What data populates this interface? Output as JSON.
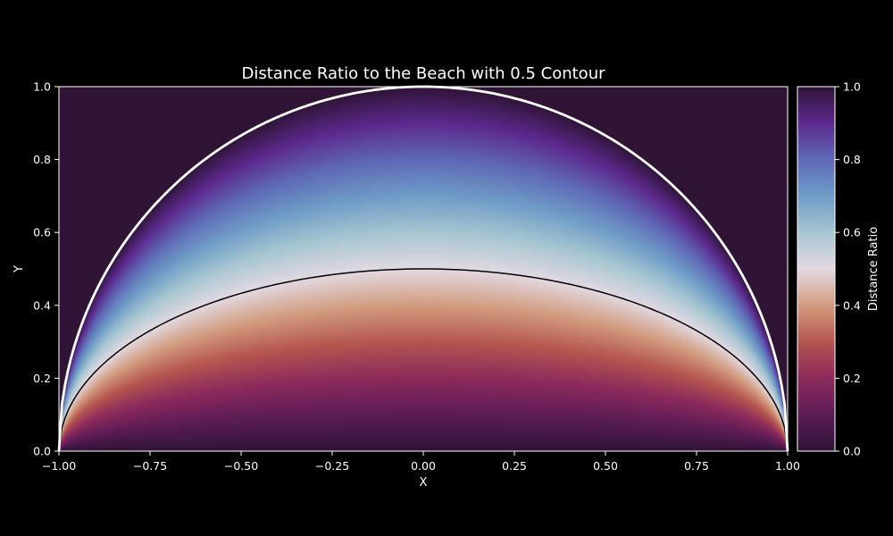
{
  "chart_data": {
    "type": "heatmap",
    "title": "Distance Ratio to the Beach with 0.5 Contour",
    "xlabel": "X",
    "ylabel": "Y",
    "xlim": [
      -1.0,
      1.0
    ],
    "ylim": [
      0.0,
      1.0
    ],
    "x_ticks": [
      "−1.00",
      "−0.75",
      "−0.50",
      "−0.25",
      "0.00",
      "0.25",
      "0.50",
      "0.75",
      "1.00"
    ],
    "x_tick_values": [
      -1.0,
      -0.75,
      -0.5,
      -0.25,
      0.0,
      0.25,
      0.5,
      0.75,
      1.0
    ],
    "y_ticks": [
      "0.0",
      "0.2",
      "0.4",
      "0.6",
      "0.8",
      "1.0"
    ],
    "y_tick_values": [
      0.0,
      0.2,
      0.4,
      0.6,
      0.8,
      1.0
    ],
    "colormap": "twilight_shifted",
    "colormap_stops": [
      [
        0.0,
        "#2f1436"
      ],
      [
        0.1,
        "#5c1c55"
      ],
      [
        0.2,
        "#8d2a5c"
      ],
      [
        0.3,
        "#b5564f"
      ],
      [
        0.4,
        "#d29c7f"
      ],
      [
        0.5,
        "#e2d9e2"
      ],
      [
        0.6,
        "#a6c6d1"
      ],
      [
        0.7,
        "#6f9cc7"
      ],
      [
        0.8,
        "#5f69b7"
      ],
      [
        0.9,
        "#5c2a8e"
      ],
      [
        1.0,
        "#2f1436"
      ]
    ],
    "outside_color": "#2f1436",
    "boundary": {
      "shape": "semicircle",
      "radius": 1.0,
      "color": "#ffffff"
    },
    "contour": {
      "level": 0.5,
      "color": "#000000",
      "peak_y": 0.5
    },
    "colorbar": {
      "label": "Distance Ratio",
      "range": [
        0.0,
        1.0
      ],
      "ticks": [
        "0.0",
        "0.2",
        "0.4",
        "0.6",
        "0.8",
        "1.0"
      ],
      "tick_values": [
        0.0,
        0.2,
        0.4,
        0.6,
        0.8,
        1.0
      ]
    },
    "grid": false,
    "background": "#000000"
  }
}
